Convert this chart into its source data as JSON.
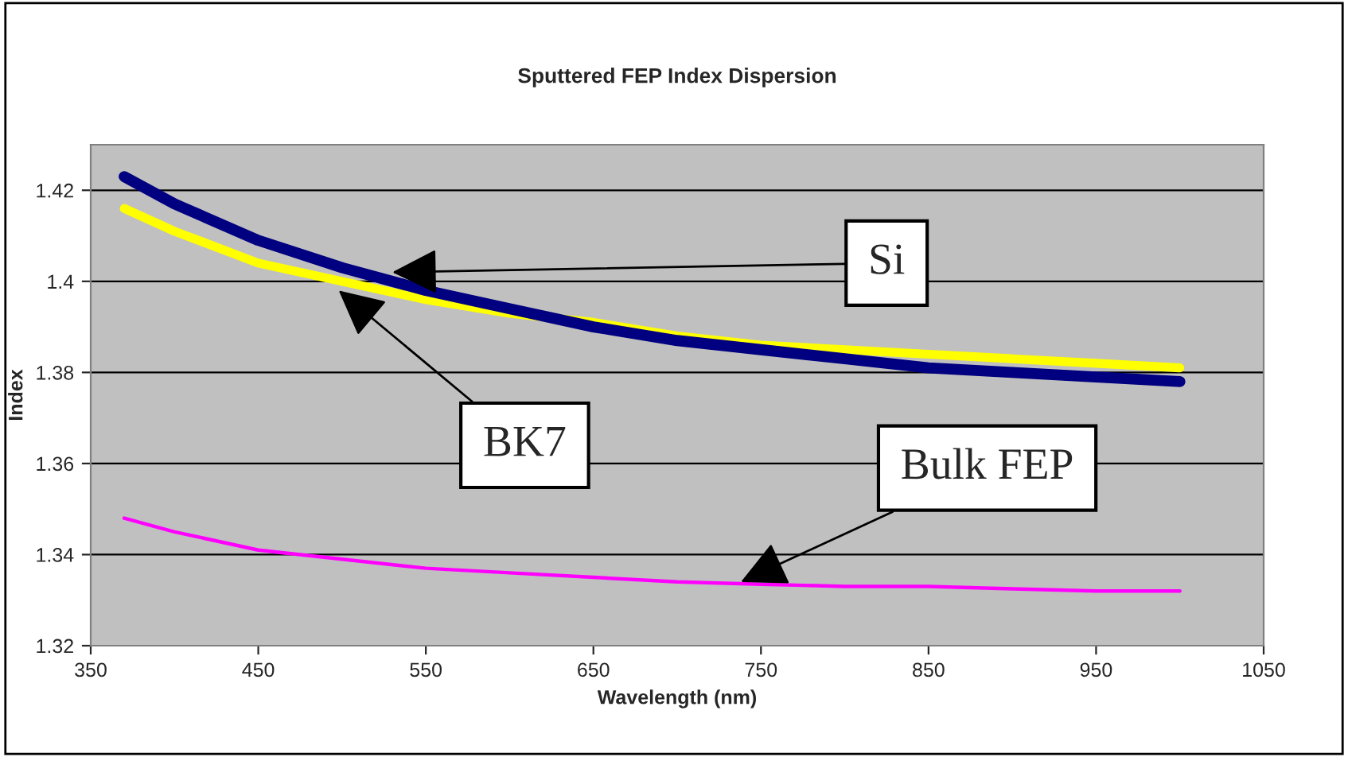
{
  "chart_data": {
    "type": "line",
    "title": "Sputtered FEP Index Dispersion",
    "xlabel": "Wavelength (nm)",
    "ylabel": "Index",
    "x": [
      370,
      400,
      450,
      500,
      550,
      600,
      650,
      700,
      750,
      800,
      850,
      900,
      950,
      1000
    ],
    "series": [
      {
        "color": "#000080",
        "values": [
          1.423,
          1.417,
          1.409,
          1.403,
          1.398,
          1.394,
          1.39,
          1.387,
          1.385,
          1.383,
          1.381,
          1.38,
          1.379,
          1.378
        ]
      },
      {
        "color": "#ffff00",
        "values": [
          1.416,
          1.411,
          1.404,
          1.4,
          1.396,
          1.393,
          1.391,
          1.388,
          1.386,
          1.385,
          1.384,
          1.383,
          1.382,
          1.381
        ]
      },
      {
        "color": "#ff00ff",
        "values": [
          1.348,
          1.345,
          1.341,
          1.339,
          1.337,
          1.336,
          1.335,
          1.334,
          1.3335,
          1.333,
          1.333,
          1.3325,
          1.332,
          1.332
        ]
      }
    ],
    "annotations": [
      {
        "text": "Si",
        "x": 530,
        "y": 1.402
      },
      {
        "text": "BK7",
        "x": 498,
        "y": 1.398
      },
      {
        "text": "Bulk FEP",
        "x": 738,
        "y": 1.334
      }
    ],
    "xlim": [
      350,
      1050
    ],
    "xticks": [
      350,
      450,
      550,
      650,
      750,
      850,
      950,
      1050
    ],
    "ylim": [
      1.32,
      1.43
    ],
    "yticks": [
      1.32,
      1.34,
      1.36,
      1.38,
      1.4,
      1.42
    ],
    "grid": "y",
    "legend": false,
    "marker": "none",
    "line_style": "solid"
  }
}
